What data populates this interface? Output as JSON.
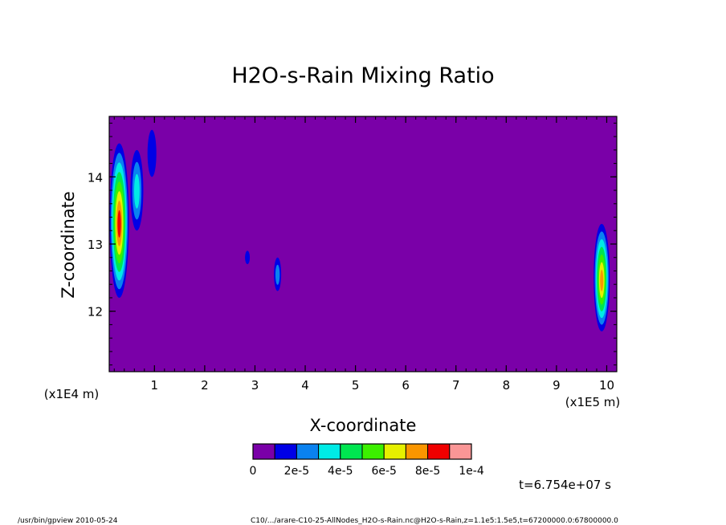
{
  "chart_data": {
    "type": "heatmap",
    "title": "H2O-s-Rain Mixing Ratio",
    "xlabel": "X-coordinate",
    "ylabel": "Z-coordinate",
    "x_unit_label": "(x1E5 m)",
    "y_unit_label": "(x1E4 m)",
    "xlim": [
      0.1,
      10.2
    ],
    "ylim": [
      11.1,
      14.9
    ],
    "x_ticks": [
      1,
      2,
      3,
      4,
      5,
      6,
      7,
      8,
      9,
      10
    ],
    "y_ticks": [
      12,
      13,
      14
    ],
    "background_value": 0,
    "colorbar": {
      "colors": [
        "#7a00a8",
        "#0000e6",
        "#0a82f0",
        "#00ebe6",
        "#00e650",
        "#3cf000",
        "#e6f000",
        "#fa9600",
        "#f00000",
        "#fa9696"
      ],
      "tick_labels": [
        "0",
        "2e-5",
        "4e-5",
        "6e-5",
        "8e-5",
        "1e-4"
      ]
    },
    "features": [
      {
        "x": 0.3,
        "z_range": [
          12.2,
          14.5
        ],
        "peak": 9e-05
      },
      {
        "x": 0.65,
        "z_range": [
          13.2,
          14.4
        ],
        "peak": 3e-05
      },
      {
        "x": 0.95,
        "z_range": [
          14.0,
          14.7
        ],
        "peak": 1e-05
      },
      {
        "x": 2.85,
        "z_range": [
          12.7,
          12.9
        ],
        "peak": 1e-05
      },
      {
        "x": 3.45,
        "z_range": [
          12.3,
          12.8
        ],
        "peak": 2e-05
      },
      {
        "x": 9.9,
        "z_range": [
          11.7,
          13.3
        ],
        "peak": 8e-05
      }
    ]
  },
  "annotations": {
    "time_label": "t=6.754e+07 s",
    "footer_left": "/usr/bin/gpview  2010-05-24",
    "footer_right": "C10/.../arare-C10-25-AllNodes_H2O-s-Rain.nc@H2O-s-Rain,z=1.1e5:1.5e5,t=67200000.0:67800000.0"
  }
}
